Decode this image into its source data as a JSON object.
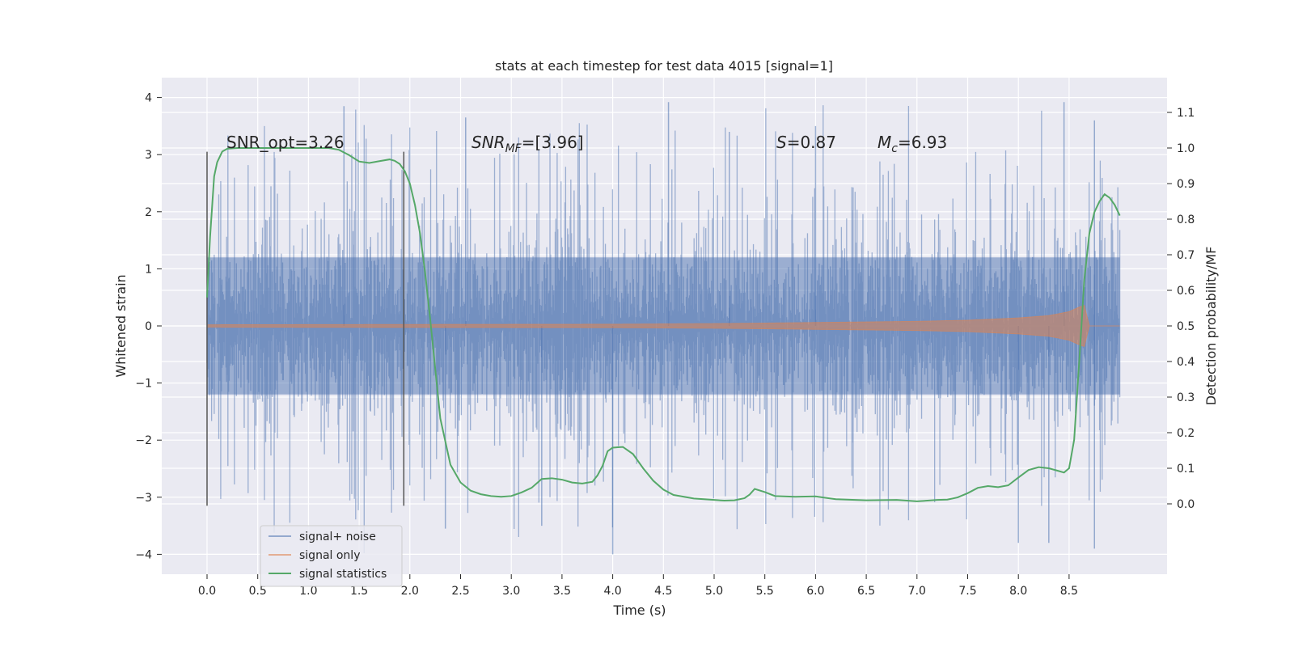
{
  "chart_data": {
    "type": "line",
    "title": "stats at each timestep for test data 4015 [signal=1]",
    "xlabel": "Time (s)",
    "ylabel": "Whitened strain",
    "ylabel_right": "Detection probability/MF",
    "xlim": [
      -0.43,
      9.45
    ],
    "ylim": [
      -4.4,
      4.3
    ],
    "ylim_right": [
      -0.2,
      1.2
    ],
    "x_ticks": [
      0.0,
      0.5,
      1.0,
      1.5,
      2.0,
      2.5,
      3.0,
      3.5,
      4.0,
      4.5,
      5.0,
      5.5,
      6.0,
      6.5,
      7.0,
      7.5,
      8.0,
      8.5
    ],
    "x_tick_labels": [
      "0.0",
      "0.5",
      "1.0",
      "1.5",
      "2.0",
      "2.5",
      "3.0",
      "3.5",
      "4.0",
      "4.5",
      "5.0",
      "5.5",
      "6.0",
      "6.5",
      "7.0",
      "7.5",
      "8.0",
      "8.5"
    ],
    "y_ticks": [
      4,
      3,
      2,
      1,
      0,
      -1,
      -2,
      -3,
      -4
    ],
    "y_tick_labels": [
      "4",
      "3",
      "2",
      "1",
      "0",
      "−1",
      "−2",
      "−3",
      "−4"
    ],
    "y_right_ticks": [
      1.1,
      1.0,
      0.9,
      0.8,
      0.7,
      0.6,
      0.5,
      0.4,
      0.3,
      0.2,
      0.1,
      0.0
    ],
    "y_right_tick_labels": [
      "1.1",
      "1.0",
      "0.9",
      "0.8",
      "0.7",
      "0.6",
      "0.5",
      "0.4",
      "0.3",
      "0.2",
      "0.1",
      "0.0"
    ],
    "grid": true,
    "legend_position": "lower-left",
    "annotations": [
      {
        "id": "snr-opt",
        "text": "SNR_opt=3.26",
        "x": 0.2,
        "y": 3.05
      },
      {
        "id": "snr-mf",
        "text": "SNR_MF=[3.96]",
        "x": 2.6,
        "y": 3.05
      },
      {
        "id": "s-value",
        "text": "S=0.87",
        "x": 5.6,
        "y": 3.05
      },
      {
        "id": "mc-value",
        "text": "M_c=6.93",
        "x": 6.6,
        "y": 3.05
      }
    ],
    "vertical_markers": [
      {
        "x": 0.0,
        "ymin": -3.15,
        "ymax": 3.05
      },
      {
        "x": 1.94,
        "ymin": -3.15,
        "ymax": 3.05
      }
    ],
    "series": [
      {
        "name": "signal+ noise",
        "color": "#4c72b0",
        "kind": "noise",
        "x_range": [
          0.0,
          9.0
        ],
        "typical_envelope": 2.0,
        "peak_values": [
          3.9,
          -4.0
        ]
      },
      {
        "name": "signal only",
        "color": "#dd8452",
        "kind": "chirp",
        "envelope_x": [
          0.0,
          4.0,
          5.0,
          6.0,
          7.0,
          7.5,
          8.0,
          8.3,
          8.5,
          8.6,
          8.65,
          8.7,
          9.0
        ],
        "envelope_y": [
          0.02,
          0.03,
          0.04,
          0.06,
          0.08,
          0.1,
          0.14,
          0.18,
          0.25,
          0.33,
          0.36,
          0.0,
          0.0
        ]
      },
      {
        "name": "signal statistics",
        "color": "#55a868",
        "axis": "right",
        "x": [
          0.0,
          0.03,
          0.07,
          0.1,
          0.15,
          0.2,
          0.3,
          0.5,
          0.8,
          1.0,
          1.2,
          1.3,
          1.4,
          1.5,
          1.6,
          1.7,
          1.8,
          1.85,
          1.9,
          1.95,
          2.0,
          2.05,
          2.1,
          2.15,
          2.2,
          2.25,
          2.3,
          2.4,
          2.5,
          2.6,
          2.7,
          2.8,
          2.9,
          3.0,
          3.1,
          3.2,
          3.3,
          3.4,
          3.5,
          3.6,
          3.7,
          3.8,
          3.85,
          3.9,
          3.95,
          4.0,
          4.1,
          4.2,
          4.3,
          4.4,
          4.5,
          4.6,
          4.8,
          5.0,
          5.1,
          5.2,
          5.3,
          5.35,
          5.4,
          5.5,
          5.6,
          5.8,
          6.0,
          6.2,
          6.5,
          6.8,
          7.0,
          7.2,
          7.3,
          7.4,
          7.5,
          7.6,
          7.7,
          7.8,
          7.9,
          8.0,
          8.1,
          8.2,
          8.3,
          8.4,
          8.45,
          8.5,
          8.55,
          8.6,
          8.65,
          8.7,
          8.75,
          8.8,
          8.85,
          8.9,
          8.95,
          9.0
        ],
        "y": [
          0.58,
          0.75,
          0.92,
          0.96,
          0.99,
          0.998,
          1.0,
          1.0,
          1.0,
          1.0,
          1.0,
          0.995,
          0.98,
          0.962,
          0.958,
          0.963,
          0.968,
          0.964,
          0.955,
          0.935,
          0.9,
          0.84,
          0.76,
          0.65,
          0.52,
          0.38,
          0.24,
          0.11,
          0.06,
          0.037,
          0.027,
          0.022,
          0.02,
          0.022,
          0.032,
          0.045,
          0.07,
          0.072,
          0.068,
          0.06,
          0.057,
          0.062,
          0.08,
          0.107,
          0.148,
          0.158,
          0.16,
          0.14,
          0.1,
          0.065,
          0.04,
          0.025,
          0.015,
          0.011,
          0.009,
          0.01,
          0.016,
          0.026,
          0.042,
          0.033,
          0.022,
          0.02,
          0.021,
          0.013,
          0.01,
          0.011,
          0.007,
          0.011,
          0.012,
          0.018,
          0.03,
          0.045,
          0.05,
          0.047,
          0.052,
          0.074,
          0.095,
          0.103,
          0.1,
          0.092,
          0.088,
          0.1,
          0.18,
          0.4,
          0.63,
          0.76,
          0.82,
          0.85,
          0.87,
          0.86,
          0.84,
          0.81
        ]
      }
    ]
  }
}
